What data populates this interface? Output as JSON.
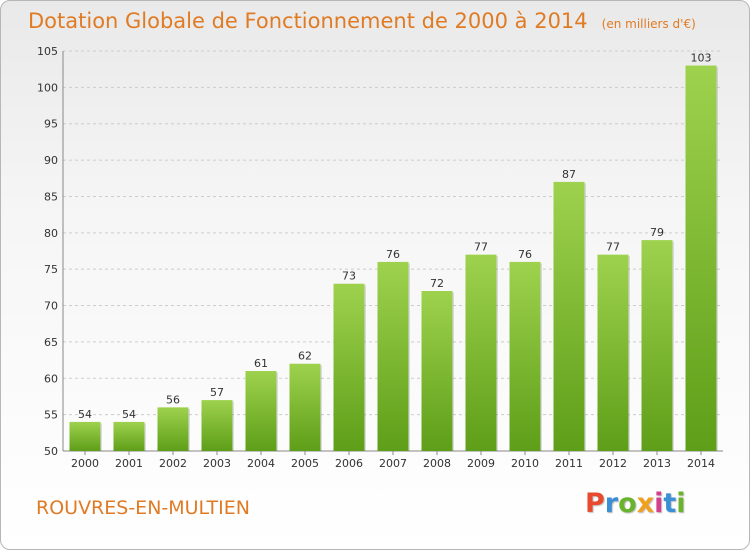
{
  "colors": {
    "accent": "#e07b24",
    "bar_top": "#9ed24e",
    "bar_bottom": "#5e9e18",
    "grid": "#cccccc"
  },
  "header": {
    "title": "Dotation Globale de Fonctionnement de 2000 à 2014",
    "subtitle": "(en milliers d'€)"
  },
  "footer": {
    "commune": "ROUVRES-EN-MULTIEN",
    "logo_letters": [
      "P",
      "r",
      "o",
      "x",
      "i",
      "t",
      "i"
    ],
    "logo_colors": [
      "#e84a2f",
      "#3a8fd6",
      "#6ab42d",
      "#f0a020",
      "#d43f8d",
      "#3a8fd6",
      "#6ab42d"
    ]
  },
  "chart_data": {
    "type": "bar",
    "title": "Dotation Globale de Fonctionnement de 2000 à 2014",
    "subtitle": "(en milliers d'€)",
    "xlabel": "",
    "ylabel": "",
    "categories": [
      "2000",
      "2001",
      "2002",
      "2003",
      "2004",
      "2005",
      "2006",
      "2007",
      "2008",
      "2009",
      "2010",
      "2011",
      "2012",
      "2013",
      "2014"
    ],
    "values": [
      54,
      54,
      56,
      57,
      61,
      62,
      73,
      76,
      72,
      77,
      76,
      87,
      77,
      79,
      103
    ],
    "ylim": [
      50,
      105
    ],
    "yticks": [
      50,
      55,
      60,
      65,
      70,
      75,
      80,
      85,
      90,
      95,
      100,
      105
    ],
    "grid": true,
    "data_labels": true
  }
}
